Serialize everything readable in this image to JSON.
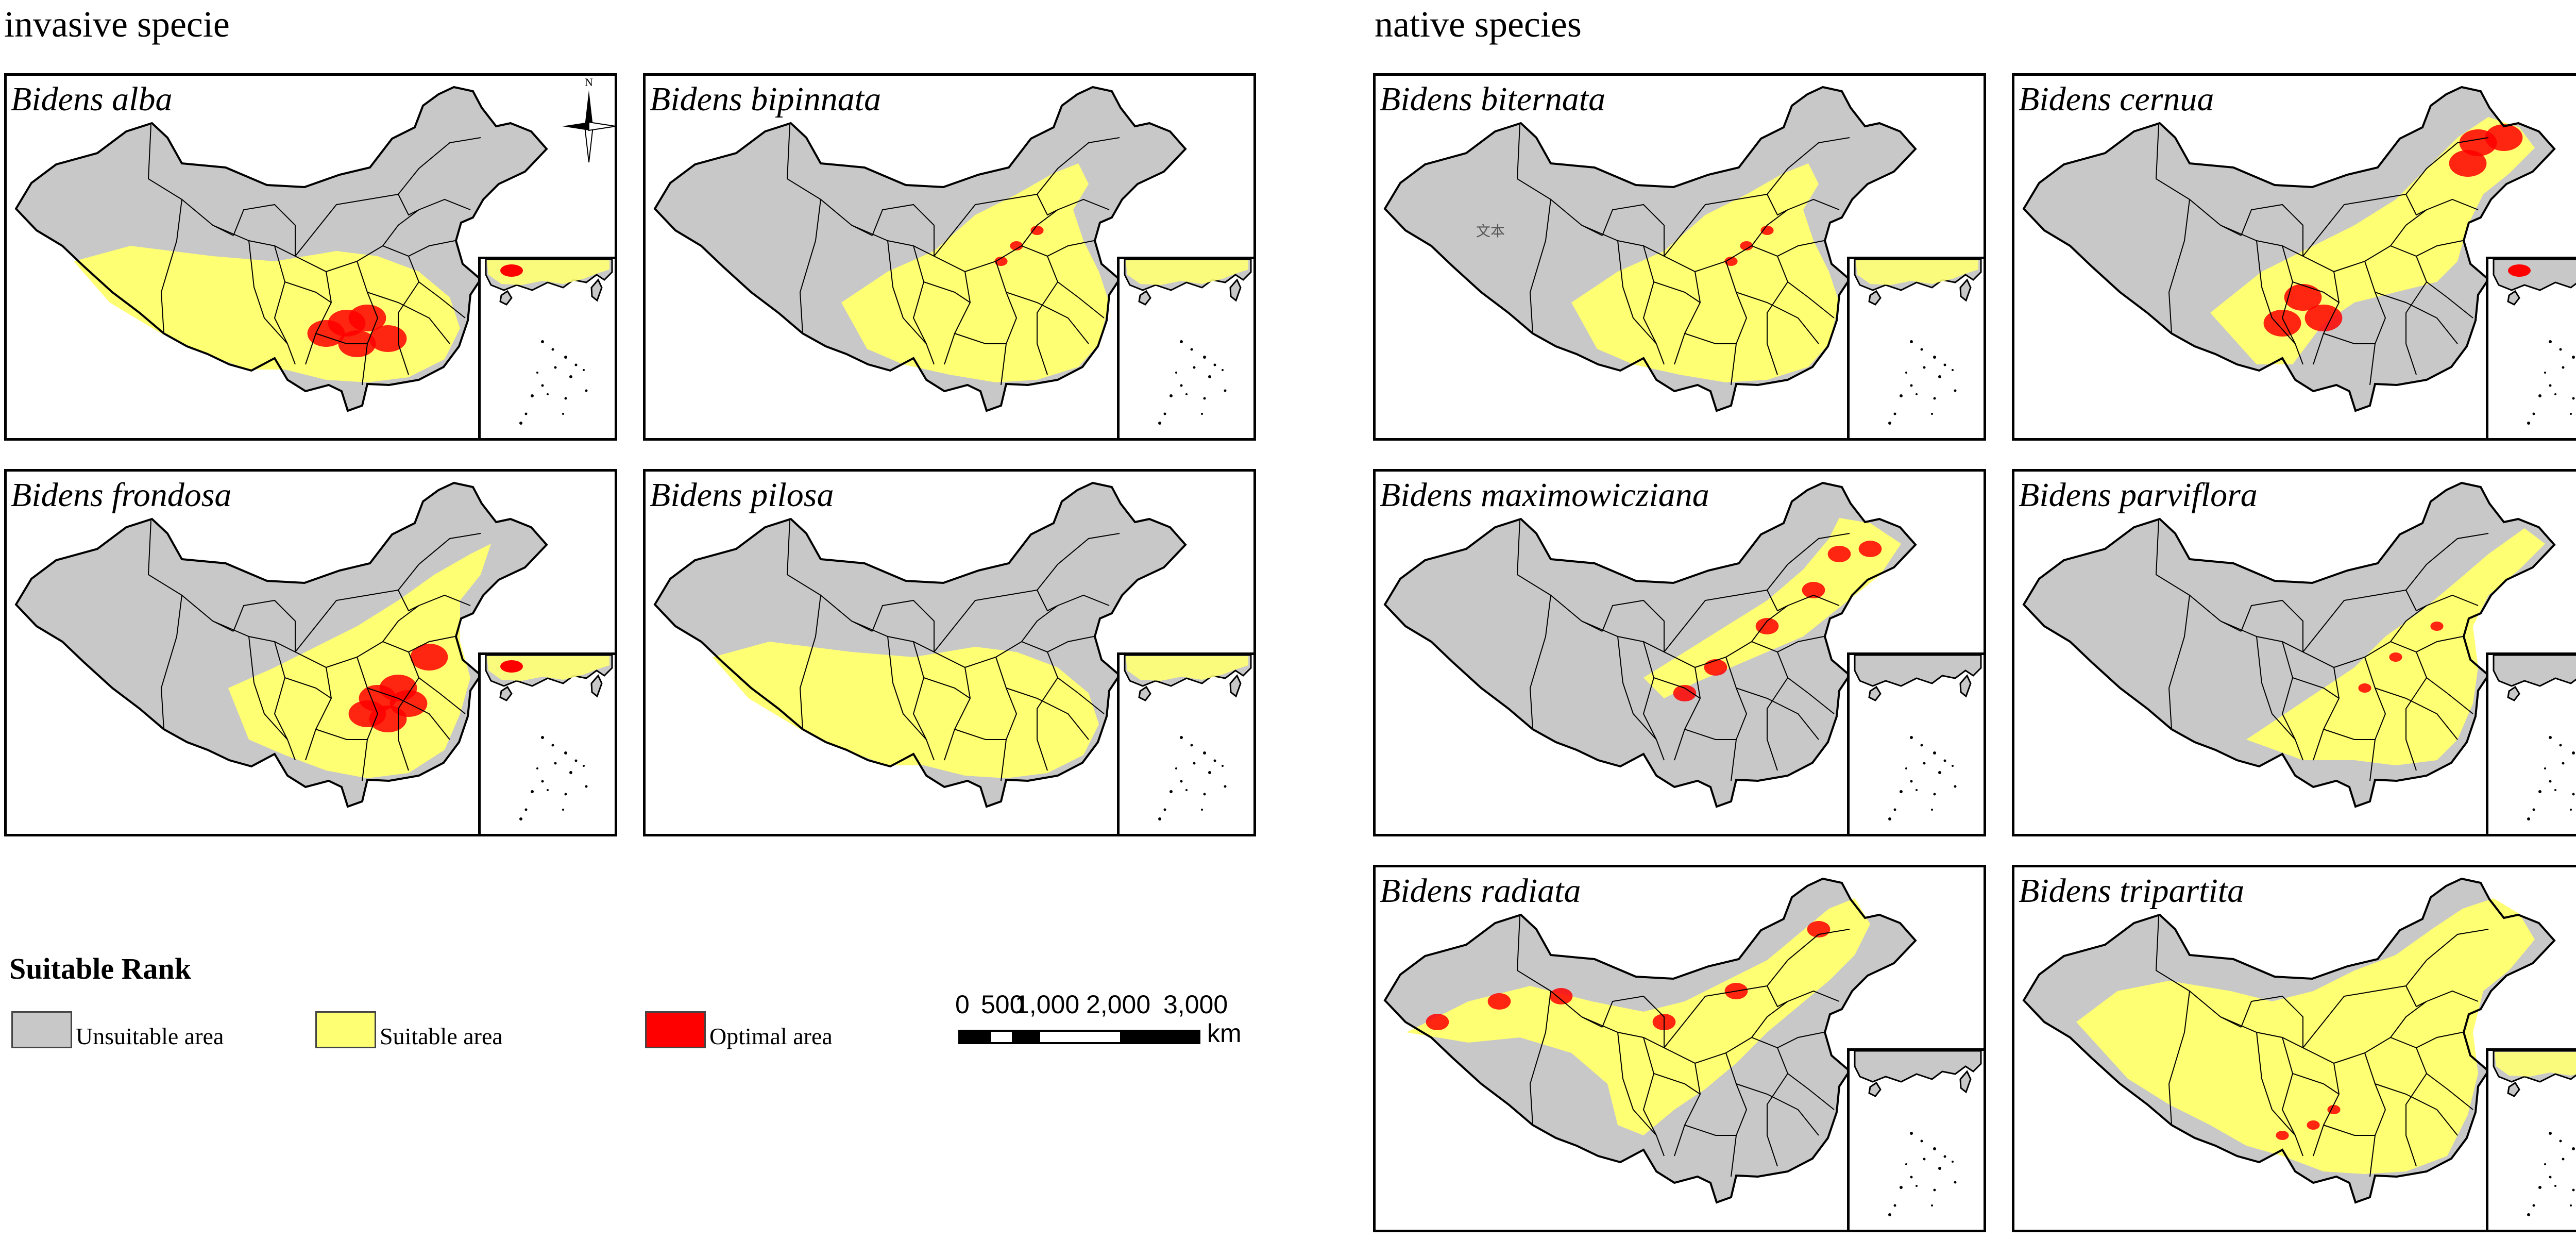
{
  "group_titles": {
    "invasive": "invasive specie",
    "native": "native species"
  },
  "panels": [
    {
      "species": "Bidens alba",
      "group": "invasive",
      "dominant_class": "suitable",
      "optimal_level": "high",
      "region": "south"
    },
    {
      "species": "Bidens bipinnata",
      "group": "invasive",
      "dominant_class": "suitable",
      "optimal_level": "low",
      "region": "east"
    },
    {
      "species": "Bidens frondosa",
      "group": "invasive",
      "dominant_class": "suitable",
      "optimal_level": "high",
      "region": "central"
    },
    {
      "species": "Bidens pilosa",
      "group": "invasive",
      "dominant_class": "suitable",
      "optimal_level": "none",
      "region": "south"
    },
    {
      "species": "Bidens biternata",
      "group": "native",
      "dominant_class": "suitable",
      "optimal_level": "low",
      "region": "east"
    },
    {
      "species": "Bidens cernua",
      "group": "native",
      "dominant_class": "suitable",
      "optimal_level": "high",
      "region": "north-southwest"
    },
    {
      "species": "Bidens maximowicziana",
      "group": "native",
      "dominant_class": "suitable",
      "optimal_level": "medium",
      "region": "northeast"
    },
    {
      "species": "Bidens parviflora",
      "group": "native",
      "dominant_class": "suitable",
      "optimal_level": "low",
      "region": "north"
    },
    {
      "species": "Bidens radiata",
      "group": "native",
      "dominant_class": "suitable",
      "optimal_level": "medium",
      "region": "north-west"
    },
    {
      "species": "Bidens tripartita",
      "group": "native",
      "dominant_class": "suitable",
      "optimal_level": "low",
      "region": "wide"
    }
  ],
  "stray_text": "文本",
  "compass": {
    "north_label": "N"
  },
  "legend": {
    "title": "Suitable Rank",
    "items": [
      {
        "label": "Unsuitable area",
        "color": "#c8c8c8"
      },
      {
        "label": "Suitable area",
        "color": "#ffff73"
      },
      {
        "label": "Optimal area",
        "color": "#ff0000"
      }
    ]
  },
  "scale_bar": {
    "labels": [
      "0",
      "500",
      "1,000",
      "2,000",
      "3,000"
    ],
    "unit": "km"
  },
  "colors": {
    "unsuitable": "#c8c8c8",
    "suitable": "#ffff73",
    "optimal": "#ff0000",
    "border": "#000000"
  }
}
